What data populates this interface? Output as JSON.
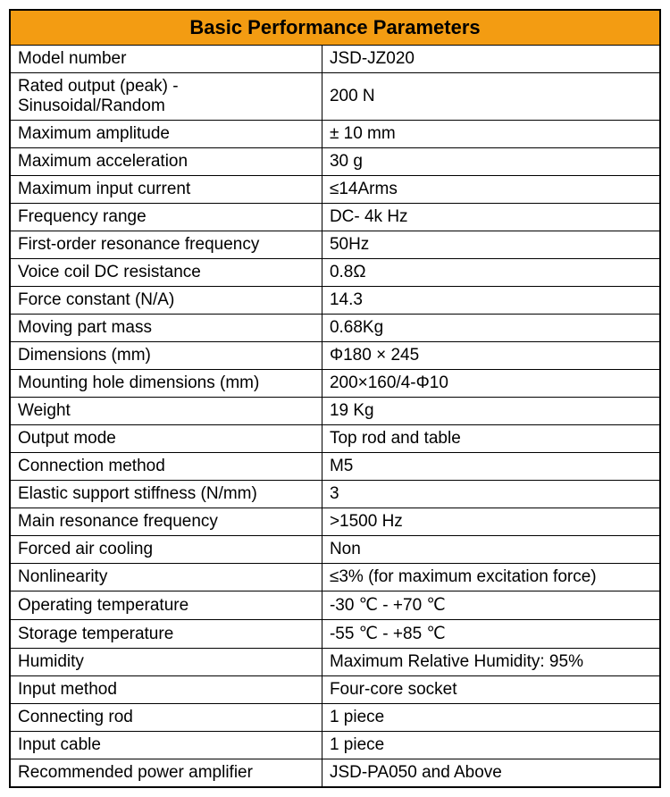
{
  "table": {
    "title": "Basic Performance Parameters",
    "header_bg_color": "#f39c12",
    "header_text_color": "#000000",
    "border_color": "#000000",
    "background_color": "#ffffff",
    "cell_text_color": "#000000",
    "title_fontsize": 22,
    "cell_fontsize": 19,
    "column_widths": [
      "48%",
      "52%"
    ],
    "rows": [
      {
        "label": "Model number",
        "value": "JSD-JZ020"
      },
      {
        "label": "Rated output (peak) - Sinusoidal/Random",
        "value": "200 N"
      },
      {
        "label": "Maximum amplitude",
        "value": "± 10 mm"
      },
      {
        "label": "Maximum acceleration",
        "value": "30 g"
      },
      {
        "label": "Maximum input current",
        "value": "≤14Arms"
      },
      {
        "label": "Frequency range",
        "value": "DC- 4k Hz"
      },
      {
        "label": "First-order resonance frequency",
        "value": "50Hz"
      },
      {
        "label": "Voice coil DC resistance",
        "value": "0.8Ω"
      },
      {
        "label": "Force constant (N/A)",
        "value": "14.3"
      },
      {
        "label": "Moving part mass",
        "value": "0.68Kg"
      },
      {
        "label": "Dimensions (mm)",
        "value": "Φ180 × 245"
      },
      {
        "label": "Mounting hole dimensions (mm)",
        "value": "200×160/4-Φ10"
      },
      {
        "label": "Weight",
        "value": "19 Kg"
      },
      {
        "label": "Output mode",
        "value": "Top rod and table"
      },
      {
        "label": "Connection method",
        "value": "M5"
      },
      {
        "label": "Elastic support stiffness (N/mm)",
        "value": "3"
      },
      {
        "label": "Main resonance frequency",
        "value": ">1500 Hz"
      },
      {
        "label": "Forced air cooling",
        "value": "Non"
      },
      {
        "label": "Nonlinearity",
        "value": "≤3% (for maximum excitation force)"
      },
      {
        "label": "Operating temperature",
        "value": "-30 ℃ - +70 ℃"
      },
      {
        "label": "Storage temperature",
        "value": "-55 ℃ - +85 ℃"
      },
      {
        "label": "Humidity",
        "value": "Maximum Relative Humidity: 95%"
      },
      {
        "label": "Input method",
        "value": "Four-core socket"
      },
      {
        "label": "Connecting rod",
        "value": "1 piece"
      },
      {
        "label": "Input cable",
        "value": "1 piece"
      },
      {
        "label": "Recommended power amplifier",
        "value": "JSD-PA050 and Above"
      }
    ]
  }
}
